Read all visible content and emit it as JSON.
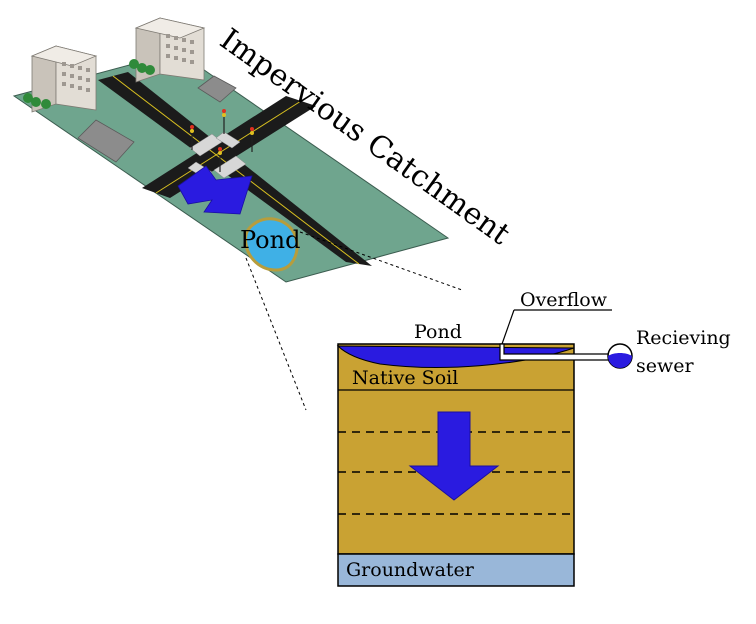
{
  "catchment": {
    "title": "Impervious Catchment",
    "pond_label": "Pond"
  },
  "section": {
    "pond_label": "Pond",
    "overflow_label": "Overflow",
    "sewer_label_line1": "Recieving",
    "sewer_label_line2": "sewer",
    "native_soil_label": "Native Soil",
    "groundwater_label": "Groundwater"
  },
  "colors": {
    "ground": "#6fa58e",
    "road": "#1b1b1b",
    "soil": "#c9a233",
    "groundwater": "#99b7d9",
    "water": "#2a1be0",
    "pond_light": "#3fb0e6",
    "arrow": "#2a1be0"
  }
}
